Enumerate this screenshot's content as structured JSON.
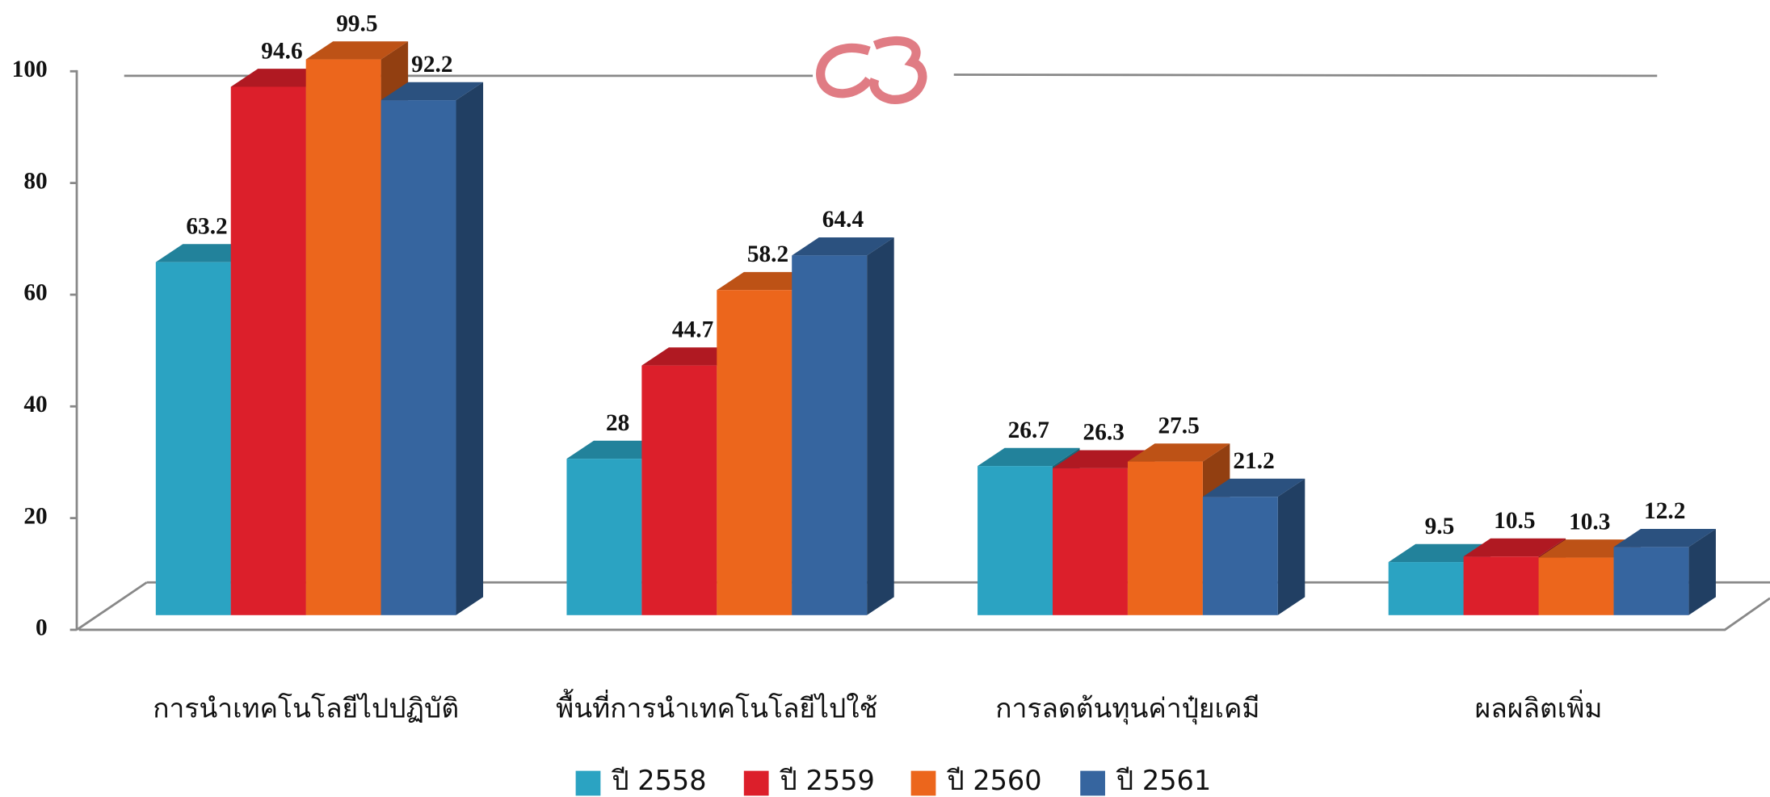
{
  "chart_data": {
    "type": "bar3d",
    "categories": [
      "การนำเทคโนโลยีไปปฏิบัติ",
      "พื้นที่การนำเทคโนโลยีไปใช้",
      "การลดต้นทุนค่าปุ๋ยเคมี",
      "ผลผลิตเพิ่ม"
    ],
    "series": [
      {
        "name": "ปี 2558",
        "color": "#2ba3c2",
        "values": [
          63.2,
          28,
          26.7,
          9.5
        ]
      },
      {
        "name": "ปี 2559",
        "color": "#dc1f2b",
        "values": [
          94.6,
          44.7,
          26.3,
          10.5
        ]
      },
      {
        "name": "ปี 2560",
        "color": "#ec661c",
        "values": [
          99.5,
          58.2,
          27.5,
          10.3
        ]
      },
      {
        "name": "ปี 2561",
        "color": "#36659f",
        "values": [
          92.2,
          64.4,
          21.2,
          12.2
        ]
      }
    ],
    "ylim": [
      0,
      100
    ],
    "yticks": [
      0,
      20,
      40,
      60,
      80,
      100
    ],
    "legend": "bottom"
  }
}
